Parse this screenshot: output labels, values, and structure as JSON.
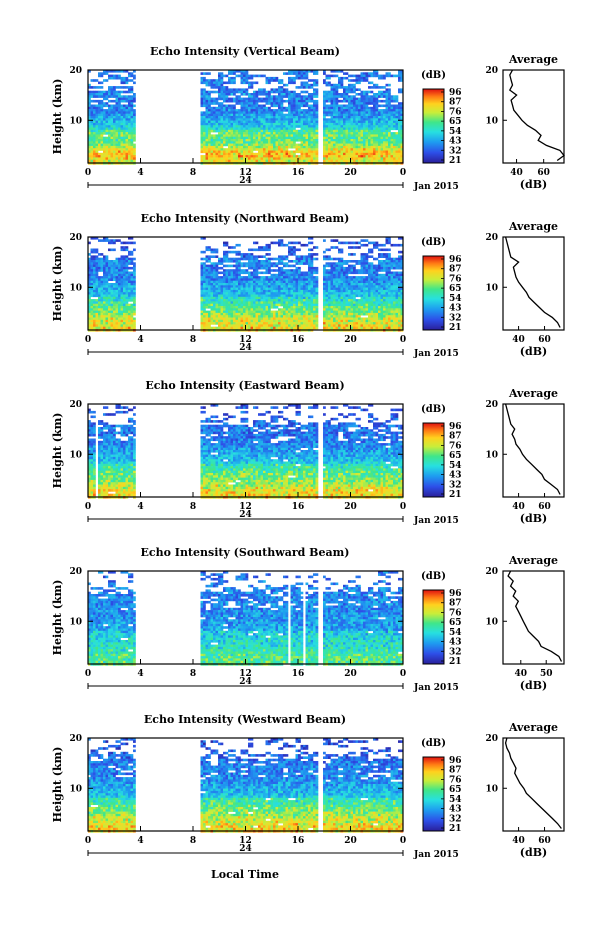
{
  "figure": {
    "date_label": "Jan 2015",
    "day_label": "24",
    "xlabel": "Local Time",
    "ylabel": "Height (km)",
    "colorbar_unit": "(dB)",
    "colorbar_ticks": [
      "96",
      "87",
      "76",
      "65",
      "54",
      "43",
      "32",
      "21"
    ],
    "profile_title": "Average",
    "profile_xlabel": "(dB)"
  },
  "chart_data": [
    {
      "type": "heatmap",
      "title": "Echo Intensity (Vertical Beam)",
      "ylabel": "Height (km)",
      "xlabel": "Local Time",
      "x_ticks": [
        "0",
        "4",
        "8",
        "12",
        "16",
        "20",
        "0"
      ],
      "y_ticks": [
        "20",
        "10"
      ],
      "xlim": [
        0,
        24
      ],
      "ylim": [
        1.5,
        20
      ],
      "data_gaps_hours": [
        [
          3.7,
          8.6
        ],
        [
          17.5,
          17.9
        ]
      ],
      "colorbar": {
        "unit": "(dB)",
        "ticks": [
          96,
          87,
          76,
          65,
          54,
          43,
          32,
          21
        ]
      },
      "profile": {
        "title": "Average",
        "xlabel": "(dB)",
        "x_ticks": [
          "40",
          "60"
        ],
        "xlim": [
          30,
          75
        ],
        "heights": [
          2,
          3,
          4,
          5,
          6,
          7,
          8,
          9,
          10,
          11,
          12,
          13,
          14,
          15,
          16,
          17,
          18,
          19,
          20
        ],
        "values": [
          70,
          75,
          72,
          62,
          56,
          58,
          54,
          48,
          44,
          41,
          38,
          37,
          36,
          40,
          35,
          37,
          36,
          35,
          37
        ]
      }
    },
    {
      "type": "heatmap",
      "title": "Echo Intensity (Northward Beam)",
      "ylabel": "Height (km)",
      "xlabel": "Local Time",
      "x_ticks": [
        "0",
        "4",
        "8",
        "12",
        "16",
        "20",
        "0"
      ],
      "y_ticks": [
        "20",
        "10"
      ],
      "xlim": [
        0,
        24
      ],
      "ylim": [
        1.5,
        20
      ],
      "data_gaps_hours": [
        [
          3.7,
          8.6
        ],
        [
          17.5,
          17.9
        ]
      ],
      "colorbar": {
        "unit": "(dB)",
        "ticks": [
          96,
          87,
          76,
          65,
          54,
          43,
          32,
          21
        ]
      },
      "profile": {
        "title": "Average",
        "xlabel": "(dB)",
        "x_ticks": [
          "40",
          "60"
        ],
        "xlim": [
          28,
          75
        ],
        "heights": [
          2,
          3,
          4,
          5,
          6,
          7,
          8,
          9,
          10,
          11,
          12,
          13,
          14,
          15,
          16,
          17,
          18,
          19,
          20
        ],
        "values": [
          72,
          70,
          66,
          60,
          56,
          52,
          48,
          46,
          43,
          40,
          38,
          37,
          36,
          40,
          34,
          33,
          32,
          31,
          30
        ]
      }
    },
    {
      "type": "heatmap",
      "title": "Echo Intensity (Eastward Beam)",
      "ylabel": "Height (km)",
      "xlabel": "Local Time",
      "x_ticks": [
        "0",
        "4",
        "8",
        "12",
        "16",
        "20",
        "0"
      ],
      "y_ticks": [
        "20",
        "10"
      ],
      "xlim": [
        0,
        24
      ],
      "ylim": [
        1.5,
        20
      ],
      "data_gaps_hours": [
        [
          0.6,
          0.8
        ],
        [
          3.7,
          8.6
        ],
        [
          17.5,
          17.9
        ]
      ],
      "colorbar": {
        "unit": "(dB)",
        "ticks": [
          96,
          87,
          76,
          65,
          54,
          43,
          32,
          21
        ]
      },
      "profile": {
        "title": "Average",
        "xlabel": "(dB)",
        "x_ticks": [
          "40",
          "60"
        ],
        "xlim": [
          28,
          75
        ],
        "heights": [
          2,
          3,
          4,
          5,
          6,
          7,
          8,
          9,
          10,
          11,
          12,
          13,
          14,
          15,
          16,
          17,
          18,
          19,
          20
        ],
        "values": [
          72,
          70,
          65,
          60,
          58,
          54,
          50,
          46,
          43,
          41,
          38,
          37,
          35,
          37,
          34,
          33,
          32,
          31,
          30
        ]
      }
    },
    {
      "type": "heatmap",
      "title": "Echo Intensity (Southward Beam)",
      "ylabel": "Height (km)",
      "xlabel": "Local Time",
      "x_ticks": [
        "0",
        "4",
        "8",
        "12",
        "16",
        "20",
        "0"
      ],
      "y_ticks": [
        "20",
        "10"
      ],
      "xlim": [
        0,
        24
      ],
      "ylim": [
        1.5,
        20
      ],
      "data_gaps_hours": [
        [
          3.7,
          8.6
        ],
        [
          15.2,
          15.4
        ],
        [
          16.3,
          16.5
        ],
        [
          17.5,
          17.9
        ]
      ],
      "colorbar": {
        "unit": "(dB)",
        "ticks": [
          96,
          87,
          76,
          65,
          54,
          43,
          32,
          21
        ]
      },
      "profile": {
        "title": "Average",
        "xlabel": "(dB)",
        "x_ticks": [
          "40",
          "50"
        ],
        "xlim": [
          33,
          57
        ],
        "heights": [
          2,
          3,
          4,
          5,
          6,
          7,
          8,
          9,
          10,
          11,
          12,
          13,
          14,
          15,
          16,
          17,
          18,
          19,
          20
        ],
        "values": [
          56,
          55,
          52,
          48,
          47,
          45,
          43,
          42,
          41,
          40,
          39,
          38,
          39,
          37,
          38,
          36,
          37,
          35,
          36
        ]
      }
    },
    {
      "type": "heatmap",
      "title": "Echo Intensity (Westward Beam)",
      "ylabel": "Height (km)",
      "xlabel": "Local Time",
      "x_ticks": [
        "0",
        "4",
        "8",
        "12",
        "16",
        "20",
        "0"
      ],
      "y_ticks": [
        "20",
        "10"
      ],
      "xlim": [
        0,
        24
      ],
      "ylim": [
        1.5,
        20
      ],
      "data_gaps_hours": [
        [
          3.7,
          8.6
        ],
        [
          17.5,
          17.9
        ]
      ],
      "colorbar": {
        "unit": "(dB)",
        "ticks": [
          96,
          87,
          76,
          65,
          54,
          43,
          32,
          21
        ]
      },
      "profile": {
        "title": "Average",
        "xlabel": "(dB)",
        "x_ticks": [
          "40",
          "60"
        ],
        "xlim": [
          28,
          75
        ],
        "heights": [
          2,
          3,
          4,
          5,
          6,
          7,
          8,
          9,
          10,
          11,
          12,
          13,
          14,
          15,
          16,
          17,
          18,
          19,
          20
        ],
        "values": [
          73,
          70,
          66,
          62,
          58,
          54,
          50,
          46,
          44,
          41,
          39,
          37,
          38,
          36,
          34,
          33,
          31,
          30,
          31
        ]
      }
    }
  ]
}
